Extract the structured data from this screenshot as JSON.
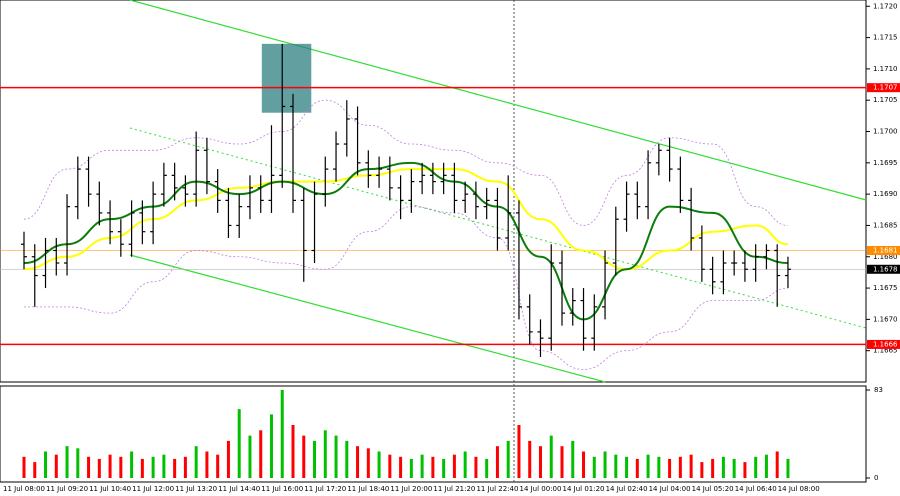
{
  "chart_data": {
    "type": "ohlc",
    "categories": [
      "11 Jul 08:00",
      null,
      null,
      null,
      "11 Jul 09:20",
      null,
      null,
      null,
      "11 Jul 10:40",
      null,
      null,
      null,
      "11 Jul 12:00",
      null,
      null,
      null,
      "11 Jul 13:20",
      null,
      null,
      null,
      "11 Jul 14:40",
      null,
      null,
      null,
      "11 Jul 16:00",
      null,
      null,
      null,
      "11 Jul 17:20",
      null,
      null,
      null,
      "11 Jul 18:40",
      null,
      null,
      null,
      "11 Jul 20:00",
      null,
      null,
      null,
      "11 Jul 21:20",
      null,
      null,
      null,
      "11 Jul 22:40",
      null,
      null,
      null,
      "14 Jul 00:00",
      null,
      null,
      null,
      "14 Jul 01:20",
      null,
      null,
      null,
      "14 Jul 02:40",
      null,
      null,
      null,
      "14 Jul 04:00",
      null,
      null,
      null,
      "14 Jul 05:20",
      null,
      null,
      null,
      "14 Jul 06:40",
      null,
      null,
      null,
      "14 Jul 08:00"
    ],
    "open": [
      1.1682,
      1.168,
      1.1677,
      1.1681,
      1.1679,
      1.1688,
      1.1694,
      1.169,
      1.1687,
      1.1684,
      1.1682,
      1.1687,
      1.1684,
      1.169,
      1.1693,
      1.1691,
      1.169,
      1.1697,
      1.1692,
      1.1689,
      1.1685,
      1.1688,
      1.1691,
      1.1689,
      1.1693,
      1.1704,
      1.1689,
      1.1681,
      1.169,
      1.1694,
      1.1698,
      1.1702,
      1.1695,
      1.1693,
      1.1694,
      1.1691,
      1.1689,
      1.1692,
      1.1693,
      1.1692,
      1.1693,
      1.1689,
      1.169,
      1.1688,
      1.1689,
      1.1683,
      1.1687,
      1.1672,
      1.1668,
      1.1667,
      1.1679,
      1.1671,
      1.1673,
      1.1667,
      1.1672,
      1.1679,
      1.1686,
      1.169,
      1.1688,
      1.1695,
      1.1697,
      1.1694,
      1.1689,
      1.1683,
      1.1678,
      1.1676,
      1.1679,
      1.1679,
      1.1678,
      1.168,
      1.1681,
      1.1677,
      null
    ],
    "high": [
      1.1684,
      1.1682,
      1.1683,
      1.1683,
      1.169,
      1.1696,
      1.1696,
      1.1692,
      1.1689,
      1.1686,
      1.1689,
      1.1689,
      1.1692,
      1.1695,
      1.1695,
      1.1693,
      1.17,
      1.1699,
      1.1694,
      1.1691,
      1.169,
      1.1693,
      1.1693,
      1.1701,
      1.1714,
      1.1706,
      1.1691,
      1.1692,
      1.1696,
      1.17,
      1.1705,
      1.1704,
      1.1697,
      1.1696,
      1.1696,
      1.1693,
      1.1694,
      1.1695,
      1.1695,
      1.1695,
      1.1695,
      1.1692,
      1.1692,
      1.1691,
      1.1691,
      1.1693,
      1.1689,
      1.1674,
      1.167,
      1.1682,
      1.1681,
      1.1675,
      1.1675,
      1.1674,
      1.1681,
      1.1688,
      1.1692,
      1.1692,
      1.1697,
      1.1698,
      1.1699,
      1.1696,
      1.1691,
      1.1685,
      1.168,
      1.1681,
      1.1681,
      1.1681,
      1.1682,
      1.1682,
      1.1682,
      1.168,
      null
    ],
    "low": [
      1.1678,
      1.1672,
      1.1675,
      1.1677,
      1.1677,
      1.1686,
      1.1688,
      1.1685,
      1.1682,
      1.168,
      1.168,
      1.1682,
      1.1682,
      1.1688,
      1.1689,
      1.1688,
      1.1688,
      1.169,
      1.1687,
      1.1683,
      1.1683,
      1.1686,
      1.1687,
      1.1687,
      1.1691,
      1.1687,
      1.1676,
      1.1679,
      1.1688,
      1.1692,
      1.1696,
      1.1693,
      1.1691,
      1.1691,
      1.1689,
      1.1686,
      1.1687,
      1.169,
      1.169,
      1.169,
      1.1687,
      1.1687,
      1.1686,
      1.1686,
      1.1681,
      1.1681,
      1.167,
      1.1666,
      1.1664,
      1.1665,
      1.1669,
      1.1669,
      1.1665,
      1.1665,
      1.167,
      1.1677,
      1.1684,
      1.1686,
      1.1686,
      1.1693,
      1.1692,
      1.1687,
      1.1681,
      1.1676,
      1.1674,
      1.1674,
      1.1677,
      1.1676,
      1.1676,
      1.1678,
      1.1672,
      1.1675,
      null
    ],
    "close": [
      1.168,
      1.1677,
      1.1681,
      1.1679,
      1.1688,
      1.1694,
      1.169,
      1.1687,
      1.1684,
      1.1682,
      1.1687,
      1.1684,
      1.169,
      1.1693,
      1.1691,
      1.169,
      1.1697,
      1.1692,
      1.1689,
      1.1685,
      1.1688,
      1.1691,
      1.1689,
      1.1693,
      1.1704,
      1.1689,
      1.1681,
      1.169,
      1.1694,
      1.1698,
      1.1702,
      1.1695,
      1.1693,
      1.1694,
      1.1691,
      1.1689,
      1.1692,
      1.1693,
      1.1692,
      1.1693,
      1.1689,
      1.169,
      1.1688,
      1.1689,
      1.1683,
      1.1687,
      1.1672,
      1.1668,
      1.1667,
      1.1679,
      1.1671,
      1.1673,
      1.1667,
      1.1672,
      1.1679,
      1.1686,
      1.169,
      1.1688,
      1.1695,
      1.1697,
      1.1694,
      1.1689,
      1.1683,
      1.1678,
      1.1676,
      1.1679,
      1.1679,
      1.1678,
      1.168,
      1.1681,
      1.1677,
      1.1678,
      null
    ],
    "bar_color": "#000000",
    "ylim": [
      1.166,
      1.1721
    ],
    "yticks": [
      {
        "value": 1.1665,
        "label": "1.1665"
      },
      {
        "value": 1.167,
        "label": "1.1670"
      },
      {
        "value": 1.1675,
        "label": "1.1675"
      },
      {
        "value": 1.168,
        "label": "1.1680"
      },
      {
        "value": 1.1685,
        "label": "1.1685"
      },
      {
        "value": 1.169,
        "label": "1.1690"
      },
      {
        "value": 1.1695,
        "label": "1.1695"
      },
      {
        "value": 1.17,
        "label": "1.1700"
      },
      {
        "value": 1.1705,
        "label": "1.1705"
      },
      {
        "value": 1.171,
        "label": "1.1710"
      },
      {
        "value": 1.1715,
        "label": "1.1715"
      },
      {
        "value": 1.172,
        "label": "1.1720"
      }
    ],
    "levels": [
      {
        "value": 1.1707,
        "label": "1.1707",
        "color": "#ff0000",
        "width": 1.5
      },
      {
        "value": 1.1681,
        "label": "1.1681",
        "color": "#ff8c00",
        "width": 0.6
      },
      {
        "value": 1.1678,
        "label": "1.1678",
        "color": "#000000",
        "width": 0.6
      },
      {
        "value": 1.1666,
        "label": "1.1666",
        "color": "#ff0000",
        "width": 1.5
      }
    ],
    "zone": {
      "from": 22.1,
      "to": 26.7,
      "low": 1.1703,
      "high": 1.1714,
      "color": "#2e7f80"
    },
    "indicators": [
      {
        "color": "#c07ee0",
        "dash": true,
        "x": [
          0,
          4,
          8,
          12,
          16,
          20,
          24,
          28,
          32,
          36,
          40,
          44,
          48,
          52,
          56,
          60,
          64,
          68,
          71
        ],
        "values": [
          1.1686,
          1.1694,
          1.1697,
          1.1697,
          1.1699,
          1.1698,
          1.17,
          1.1705,
          1.1701,
          1.1698,
          1.1697,
          1.1695,
          1.1693,
          1.1685,
          1.1693,
          1.1699,
          1.1698,
          1.1688,
          1.1685
        ]
      },
      {
        "color": "#c07ee0",
        "dash": true,
        "x": [
          0,
          4,
          8,
          12,
          16,
          20,
          24,
          28,
          32,
          36,
          40,
          44,
          48,
          52,
          56,
          60,
          64,
          68,
          71
        ],
        "values": [
          1.1672,
          1.1672,
          1.1671,
          1.1676,
          1.1681,
          1.168,
          1.1679,
          1.1678,
          1.1684,
          1.1688,
          1.1687,
          1.1683,
          1.1665,
          1.1662,
          1.1665,
          1.1668,
          1.1673,
          1.1673,
          1.1675
        ]
      },
      {
        "color": "#ffff00",
        "dash": false,
        "x": [
          0,
          4,
          8,
          12,
          16,
          20,
          24,
          28,
          32,
          36,
          40,
          44,
          48,
          52,
          56,
          60,
          64,
          68,
          71
        ],
        "values": [
          1.1678,
          1.168,
          1.1683,
          1.1686,
          1.1689,
          1.1691,
          1.1692,
          1.1692,
          1.1693,
          1.1694,
          1.1694,
          1.1692,
          1.1686,
          1.1681,
          1.1678,
          1.1681,
          1.1684,
          1.1685,
          1.1682
        ]
      },
      {
        "color": "#0a7d0a",
        "dash": false,
        "x": [
          0,
          4,
          8,
          12,
          16,
          20,
          24,
          28,
          32,
          36,
          40,
          44,
          48,
          52,
          56,
          60,
          64,
          68,
          71
        ],
        "values": [
          1.1679,
          1.1682,
          1.1686,
          1.1688,
          1.1692,
          1.169,
          1.1692,
          1.169,
          1.1694,
          1.1695,
          1.1692,
          1.1688,
          1.168,
          1.167,
          1.1678,
          1.1688,
          1.1687,
          1.168,
          1.1679
        ]
      }
    ],
    "volume": {
      "values": [
        20,
        15,
        25,
        22,
        30,
        28,
        20,
        18,
        22,
        20,
        25,
        18,
        20,
        22,
        18,
        20,
        30,
        25,
        22,
        35,
        65,
        40,
        45,
        60,
        83,
        50,
        40,
        35,
        45,
        40,
        35,
        30,
        28,
        25,
        22,
        20,
        18,
        22,
        20,
        18,
        22,
        25,
        20,
        18,
        30,
        35,
        50,
        35,
        30,
        40,
        30,
        35,
        25,
        20,
        25,
        22,
        20,
        18,
        22,
        20,
        18,
        20,
        22,
        15,
        18,
        20,
        18,
        15,
        20,
        22,
        25,
        18,
        null
      ],
      "up_color": "#00c000",
      "down_color": "#ff0000",
      "ylim": [
        0,
        83
      ],
      "yticks": [
        0,
        83
      ]
    }
  }
}
